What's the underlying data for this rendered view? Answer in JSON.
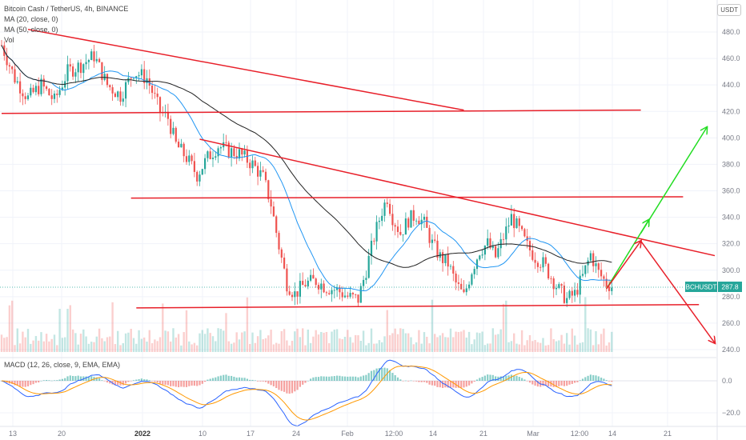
{
  "header": {
    "symbol_line": "Bitcoin Cash / TetherUS, 4h, BINANCE",
    "ma1_label": "MA (20, close, 0)",
    "ma2_label": "MA (50, close, 0)",
    "vol_label": "Vol",
    "currency": "USDT"
  },
  "macd": {
    "label": "MACD (12, 26, close, 9, EMA, EMA)"
  },
  "price_tag": {
    "symbol": "BCHUSDT",
    "value": "287.8"
  },
  "colors": {
    "up": "#26a69a",
    "down": "#ef5350",
    "trendline": "#e8202a",
    "green_arrow": "#22dd22",
    "red_arrow": "#e8202a",
    "ma_fast": "#2196f3",
    "ma_slow": "#222222",
    "macd_line": "#2962ff",
    "signal_line": "#ff9800"
  },
  "chart_data": {
    "type": "candlestick",
    "symbol": "BCHUSDT",
    "interval": "4h",
    "exchange": "BINANCE",
    "last_price": 287.8,
    "price_axis": {
      "ticks": [
        480.0,
        460.0,
        440.0,
        420.0,
        400.0,
        380.0,
        360.0,
        340.0,
        320.0,
        300.0,
        280.0,
        260.0,
        240.0
      ],
      "labels": [
        "480.0",
        "460.0",
        "440.0",
        "420.0",
        "400.0",
        "380.0",
        "360.0",
        "340.0",
        "320.0",
        "300.0",
        "280.0",
        "260.0",
        "240.0"
      ]
    },
    "macd_axis": {
      "ticks": [
        0.0,
        -20.0
      ],
      "labels": [
        "0.0",
        "−20.0"
      ]
    },
    "time_axis": {
      "labels": [
        "13",
        "20",
        "2022",
        "10",
        "17",
        "24",
        "Feb",
        "12:00",
        "14",
        "21",
        "Mar",
        "12:00",
        "14",
        "21"
      ]
    },
    "price_path": [
      [
        0,
        470
      ],
      [
        5,
        445
      ],
      [
        10,
        430
      ],
      [
        15,
        440
      ],
      [
        20,
        428
      ],
      [
        25,
        450
      ],
      [
        30,
        455
      ],
      [
        35,
        462
      ],
      [
        40,
        440
      ],
      [
        45,
        432
      ],
      [
        50,
        450
      ],
      [
        55,
        445
      ],
      [
        60,
        420
      ],
      [
        63,
        415
      ],
      [
        66,
        395
      ],
      [
        70,
        385
      ],
      [
        74,
        372
      ],
      [
        78,
        385
      ],
      [
        82,
        394
      ],
      [
        86,
        390
      ],
      [
        90,
        388
      ],
      [
        95,
        380
      ],
      [
        99,
        370
      ],
      [
        102,
        350
      ],
      [
        105,
        318
      ],
      [
        108,
        290
      ],
      [
        111,
        282
      ],
      [
        115,
        290
      ],
      [
        119,
        292
      ],
      [
        123,
        287
      ],
      [
        127,
        285
      ],
      [
        131,
        280
      ],
      [
        135,
        278
      ],
      [
        138,
        300
      ],
      [
        141,
        325
      ],
      [
        144,
        345
      ],
      [
        146,
        355
      ],
      [
        148,
        340
      ],
      [
        151,
        328
      ],
      [
        154,
        338
      ],
      [
        157,
        342
      ],
      [
        160,
        335
      ],
      [
        163,
        320
      ],
      [
        166,
        310
      ],
      [
        169,
        305
      ],
      [
        172,
        290
      ],
      [
        175,
        280
      ],
      [
        178,
        300
      ],
      [
        181,
        315
      ],
      [
        184,
        320
      ],
      [
        187,
        310
      ],
      [
        190,
        325
      ],
      [
        193,
        340
      ],
      [
        196,
        330
      ],
      [
        199,
        318
      ],
      [
        202,
        310
      ],
      [
        205,
        305
      ],
      [
        208,
        295
      ],
      [
        211,
        285
      ],
      [
        214,
        278
      ],
      [
        217,
        282
      ],
      [
        220,
        295
      ],
      [
        223,
        312
      ],
      [
        226,
        298
      ],
      [
        229,
        290
      ],
      [
        231,
        288
      ]
    ],
    "annotations": [
      {
        "type": "trendline",
        "points": [
          [
            10,
            482
          ],
          [
            175,
            421
          ]
        ]
      },
      {
        "type": "horizontal",
        "points": [
          [
            0,
            418.5
          ],
          [
            242,
            421
          ]
        ]
      },
      {
        "type": "trendline",
        "points": [
          [
            75,
            399
          ],
          [
            270,
            311
          ]
        ]
      },
      {
        "type": "horizontal",
        "points": [
          [
            49,
            354.5
          ],
          [
            258,
            355.5
          ]
        ]
      },
      {
        "type": "horizontal",
        "points": [
          [
            51,
            271.5
          ],
          [
            264,
            274
          ]
        ]
      },
      {
        "type": "arrow",
        "color": "green",
        "points": [
          [
            229,
            286
          ],
          [
            245,
            338
          ]
        ]
      },
      {
        "type": "arrow",
        "color": "green",
        "points": [
          [
            242,
            328
          ],
          [
            267,
            408
          ]
        ]
      },
      {
        "type": "arrow",
        "color": "red",
        "points": [
          [
            229,
            286
          ],
          [
            242,
            322
          ]
        ]
      },
      {
        "type": "arrow",
        "color": "red",
        "points": [
          [
            242,
            322
          ],
          [
            270,
            245
          ]
        ]
      }
    ]
  }
}
